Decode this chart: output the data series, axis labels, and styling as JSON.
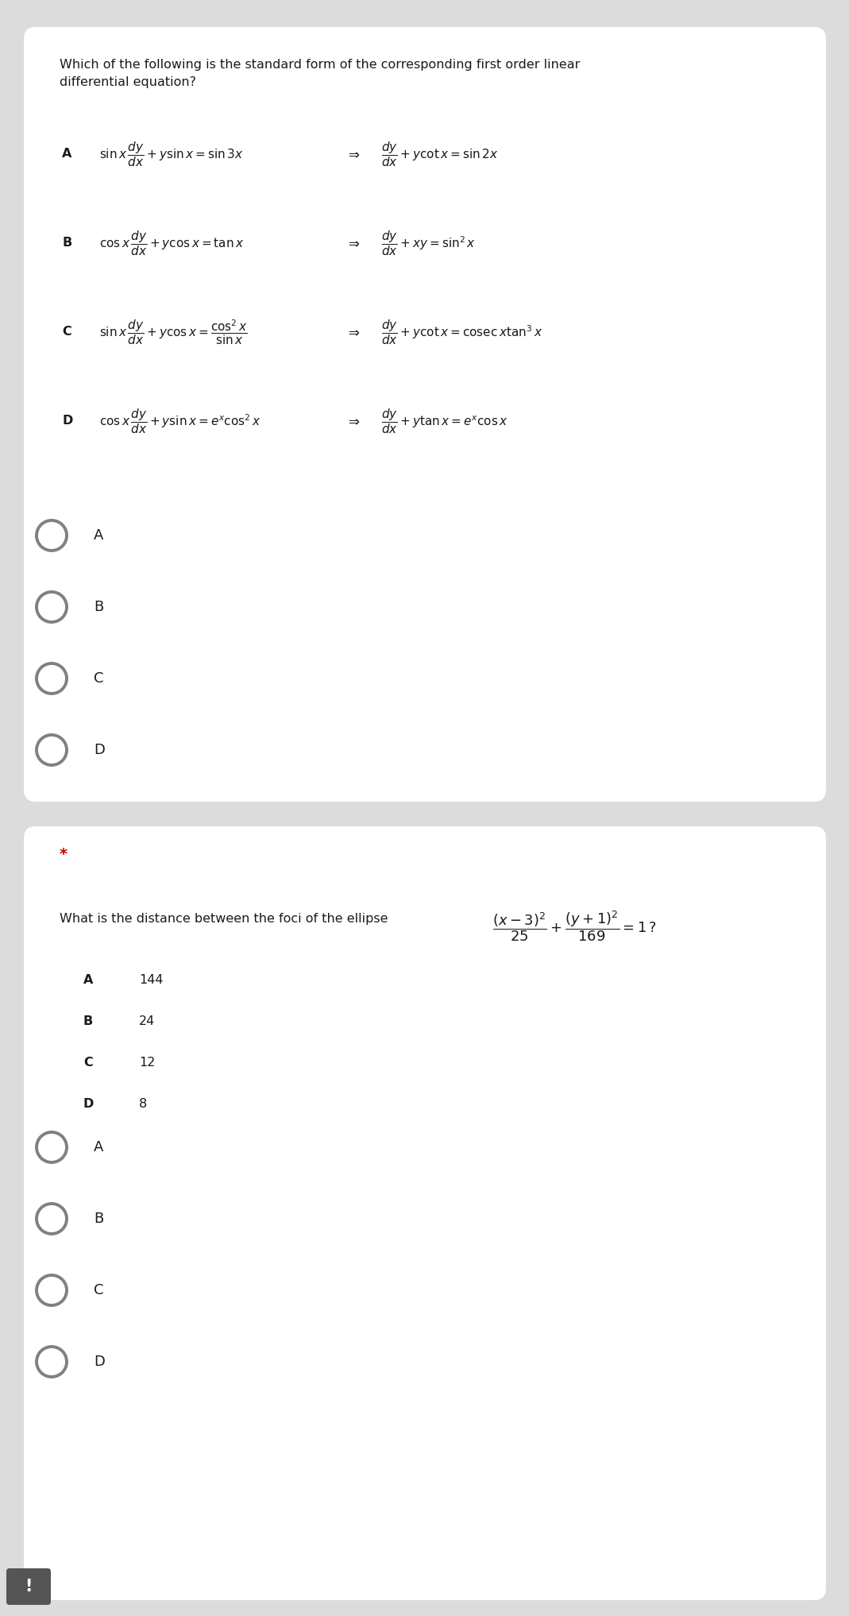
{
  "bg_outer": "#dcdcdc",
  "bg_card": "#ffffff",
  "text_color": "#1a1a1a",
  "radio_color": "#808080",
  "star_color": "#cc0000",
  "warn_color": "#555555",
  "q1_title": "Which of the following is the standard form of the corresponding first order linear\ndifferential equation?",
  "q1_options_lhs": [
    "$\\sin x\\,\\dfrac{dy}{dx}+y\\sin x=\\sin 3x$",
    "$\\cos x\\,\\dfrac{dy}{dx}+y\\cos x=\\tan x$",
    "$\\sin x\\,\\dfrac{dy}{dx}+y\\cos x=\\dfrac{\\cos^{2}x}{\\sin x}$",
    "$\\cos x\\,\\dfrac{dy}{dx}+y\\sin x=e^{x}\\cos^{2}x$"
  ],
  "q1_options_rhs": [
    "$\\dfrac{dy}{dx}+y\\cot x=\\sin 2x$",
    "$\\dfrac{dy}{dx}+xy=\\sin^{2}x$",
    "$\\dfrac{dy}{dx}+y\\cot x=\\mathrm{cosec}\\,x\\tan^{3}x$",
    "$\\dfrac{dy}{dx}+y\\tan x=e^{x}\\cos x$"
  ],
  "q1_option_labels": [
    "A",
    "B",
    "C",
    "D"
  ],
  "q1_radio_labels": [
    "A",
    "B",
    "C",
    "D"
  ],
  "q2_star": "*",
  "q2_text": "What is the distance between the foci of the ellipse",
  "q2_formula": "$\\dfrac{(x-3)^{2}}{25}+\\dfrac{(y+1)^{2}}{169}=1\\,?$",
  "q2_option_labels": [
    "A",
    "B",
    "C",
    "D"
  ],
  "q2_option_values": [
    "144",
    "24",
    "12",
    "8"
  ],
  "q2_radio_labels": [
    "A",
    "B",
    "C",
    "D"
  ]
}
